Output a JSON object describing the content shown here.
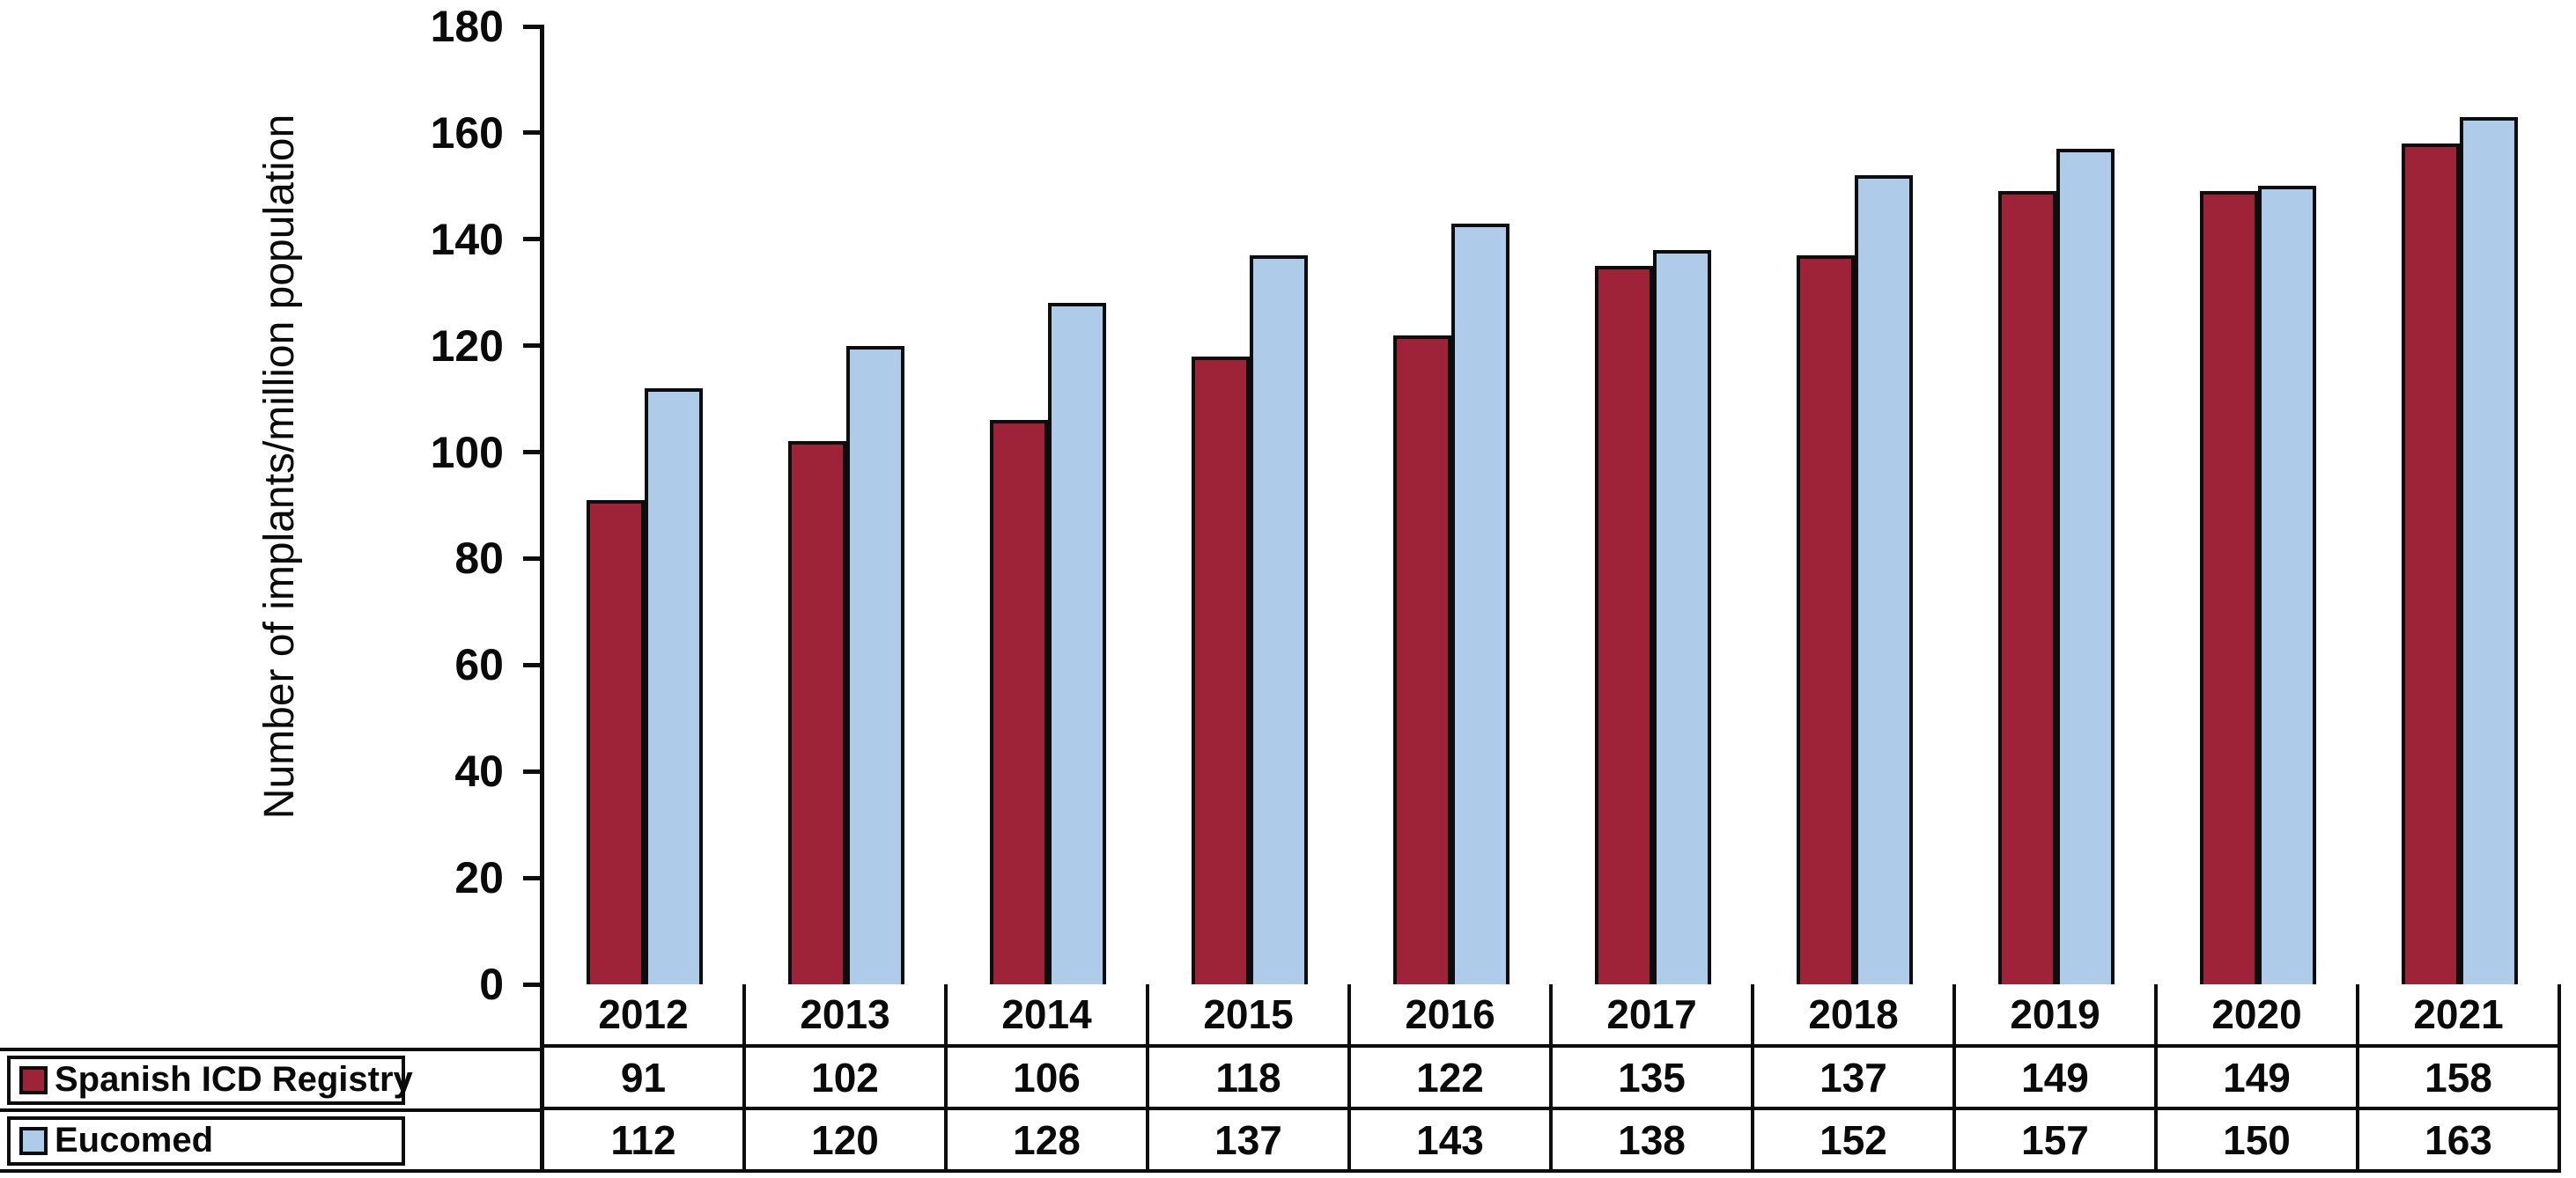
{
  "chart_data": {
    "type": "bar",
    "title": "",
    "ylabel": "Number of implants/million population",
    "xlabel": "",
    "categories": [
      "2012",
      "2013",
      "2014",
      "2015",
      "2016",
      "2017",
      "2018",
      "2019",
      "2020",
      "2021"
    ],
    "series": [
      {
        "name": "Spanish ICD Registry",
        "color": "#9e2338",
        "values": [
          91,
          102,
          106,
          118,
          122,
          135,
          137,
          149,
          149,
          158
        ]
      },
      {
        "name": "Eucomed",
        "color": "#aecbe9",
        "values": [
          112,
          120,
          128,
          137,
          143,
          138,
          152,
          157,
          150,
          163
        ]
      }
    ],
    "ylim": [
      0,
      180
    ],
    "ytick_step": 20,
    "ytick_labels": [
      "0",
      "20",
      "40",
      "60",
      "80",
      "100",
      "120",
      "140",
      "160",
      "180"
    ],
    "grid": false,
    "legend_position": "bottom-left table column",
    "bar_border_color": "#0d0d0d",
    "background_color": "#ffffff"
  }
}
